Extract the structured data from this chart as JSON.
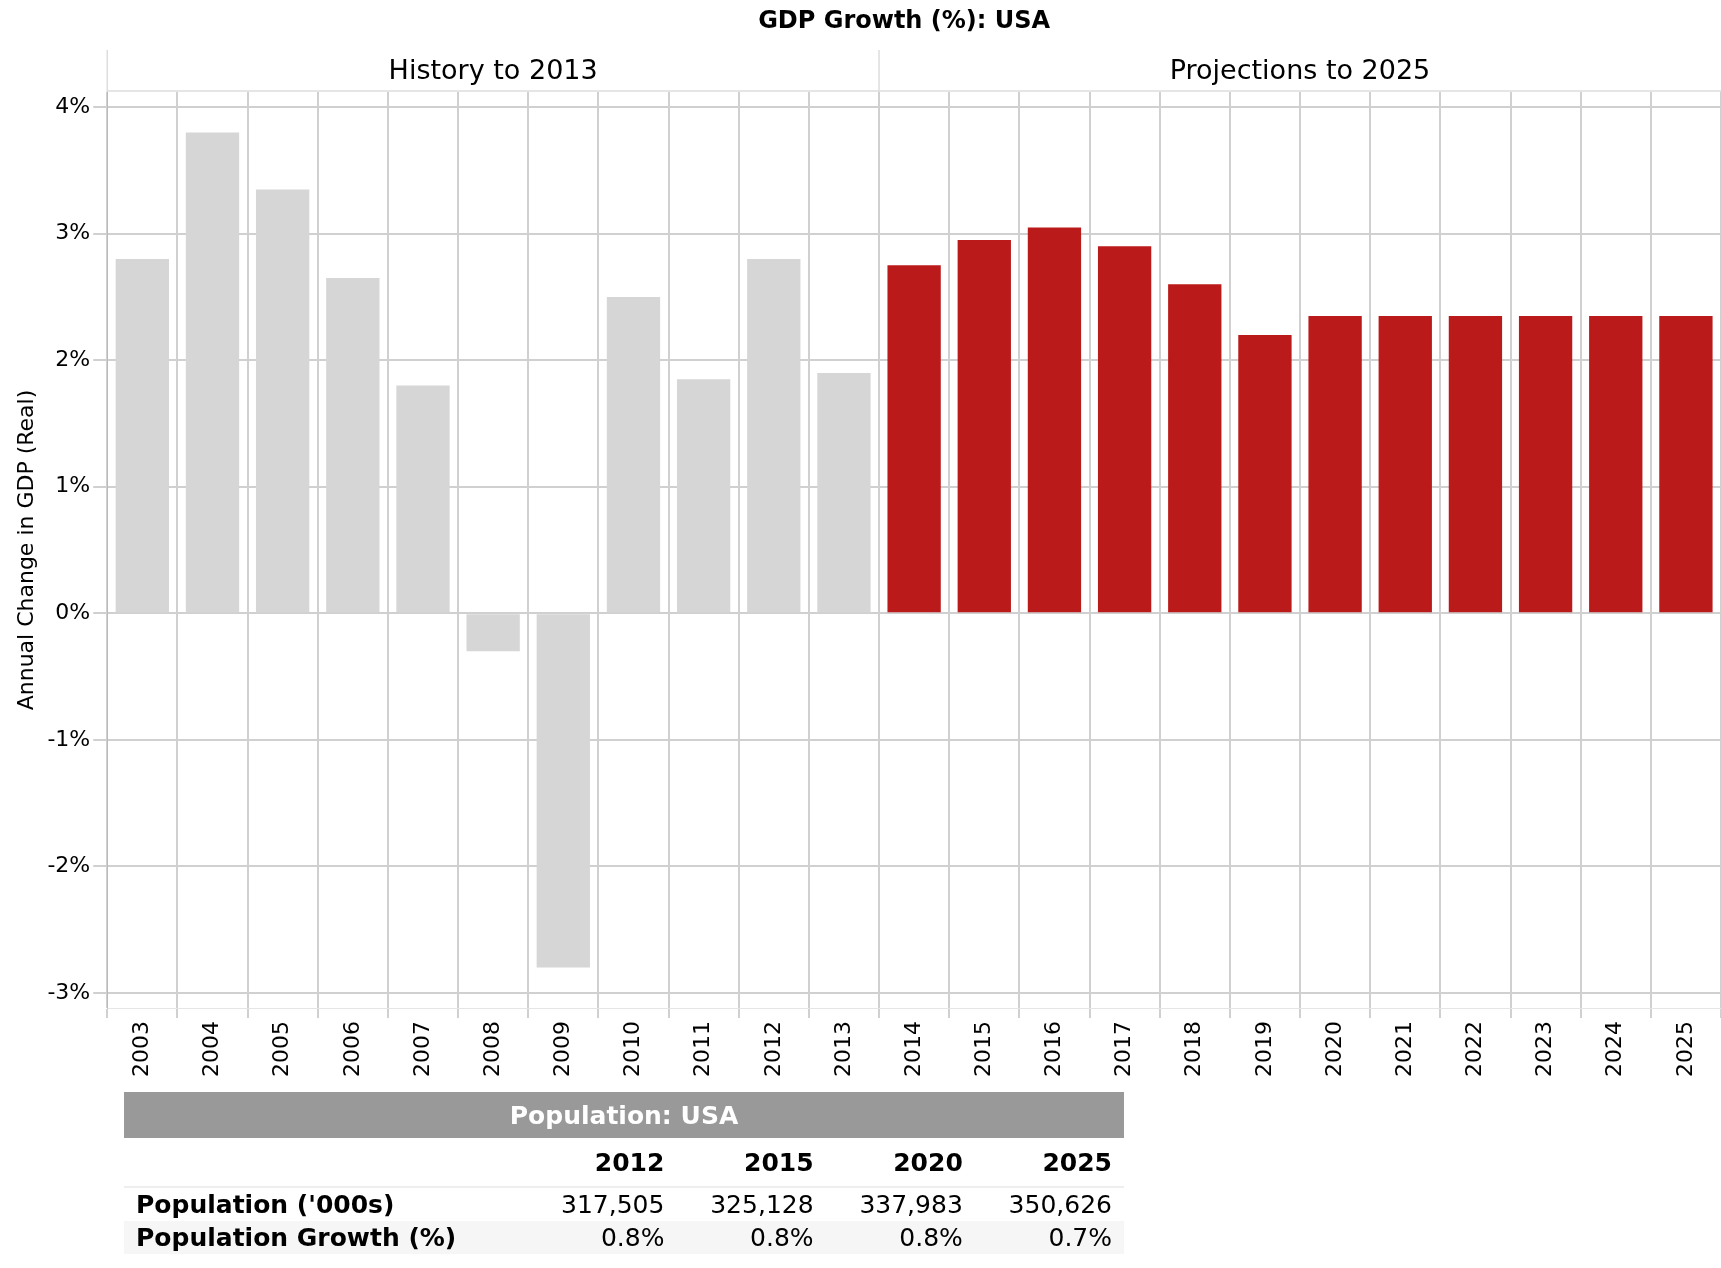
{
  "chart_data": [
    {
      "type": "bar",
      "title": "GDP Growth (%): USA",
      "ylabel": "Annual Change in GDP (Real)",
      "categories": [
        "2003",
        "2004",
        "2005",
        "2006",
        "2007",
        "2008",
        "2009",
        "2010",
        "2011",
        "2012",
        "2013",
        "2014",
        "2015",
        "2016",
        "2017",
        "2018",
        "2019",
        "2020",
        "2021",
        "2022",
        "2023",
        "2024",
        "2025"
      ],
      "values": [
        2.8,
        3.8,
        3.35,
        2.65,
        1.8,
        -0.3,
        -2.8,
        2.5,
        1.85,
        2.8,
        1.9,
        2.75,
        2.95,
        3.05,
        2.9,
        2.6,
        2.2,
        2.35,
        2.35,
        2.35,
        2.35,
        2.35,
        2.35
      ],
      "colors": [
        "#d6d6d6",
        "#d6d6d6",
        "#d6d6d6",
        "#d6d6d6",
        "#d6d6d6",
        "#d6d6d6",
        "#d6d6d6",
        "#d6d6d6",
        "#d6d6d6",
        "#d6d6d6",
        "#d6d6d6",
        "#bb1a1a",
        "#bb1a1a",
        "#bb1a1a",
        "#bb1a1a",
        "#bb1a1a",
        "#bb1a1a",
        "#bb1a1a",
        "#bb1a1a",
        "#bb1a1a",
        "#bb1a1a",
        "#bb1a1a",
        "#bb1a1a"
      ],
      "ylim": [
        -3.12,
        4.12
      ],
      "yticks": [
        {
          "value": -3,
          "label": "-3%"
        },
        {
          "value": -2,
          "label": "-2%"
        },
        {
          "value": -1,
          "label": "-1%"
        },
        {
          "value": 0,
          "label": "0%"
        },
        {
          "value": 1,
          "label": "1%"
        },
        {
          "value": 2,
          "label": "2%"
        },
        {
          "value": 3,
          "label": "3%"
        },
        {
          "value": 4,
          "label": "4%"
        }
      ],
      "annotations": [
        "History to 2013",
        "Projections to 2025"
      ],
      "grid": true,
      "legend": false
    },
    {
      "type": "other",
      "title": "Population: USA",
      "categories": [
        "2012",
        "2015",
        "2020",
        "2025"
      ],
      "y_categories": [
        "Population ('000s)",
        "Population Growth (%)"
      ],
      "cell_labels": [
        [
          "317,505",
          "325,128",
          "337,983",
          "350,626"
        ],
        [
          "0.8%",
          "0.8%",
          "0.8%",
          "0.7%"
        ]
      ]
    }
  ]
}
